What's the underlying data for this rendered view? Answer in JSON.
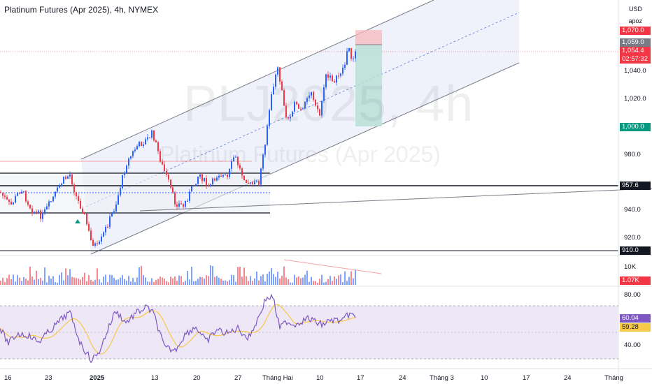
{
  "header": {
    "title": "Platinum Futures (Apr 2025), 4h, NYMEX"
  },
  "watermark": {
    "symbol": "PLJ2025, 4h",
    "name": "Platinum Futures (Apr 2025)"
  },
  "price_scale": {
    "currency": "USD",
    "unit": "apoz",
    "labels": [
      "1,040.0",
      "1,020.0",
      "980.0",
      "940.0",
      "920.0"
    ],
    "tags": {
      "stop": {
        "text": "1,070.0",
        "color": "#f23645"
      },
      "entry": {
        "text": "1,059.0",
        "color": "#787b86"
      },
      "last": {
        "text": "1,054.4",
        "color": "#f23645"
      },
      "countdown": {
        "text": "02:57:32",
        "color": "#f23645"
      },
      "target": {
        "text": "1,000.0",
        "color": "#089981"
      },
      "level1": {
        "text": "957.6",
        "color": "#131722"
      },
      "level2": {
        "text": "910.0",
        "color": "#131722"
      }
    }
  },
  "volume_scale": {
    "label": "10K",
    "tag": "1.07K"
  },
  "rsi_scale": {
    "labels": [
      "80.00",
      "40.00"
    ],
    "rsi_tag": "60.04",
    "ma_tag": "59.28",
    "rsi_color": "#7e57c2",
    "ma_color": "#f7c948"
  },
  "time_axis": [
    "16",
    "23",
    "2025",
    "13",
    "20",
    "27",
    "Tháng Hai",
    "10",
    "17",
    "24",
    "Tháng 3",
    "10",
    "17",
    "24",
    "Tháng"
  ],
  "colors": {
    "up": "#2962ff",
    "down": "#f23645",
    "channel_fill": "#e8eefb",
    "rsi_band": "#ede7f6"
  }
}
